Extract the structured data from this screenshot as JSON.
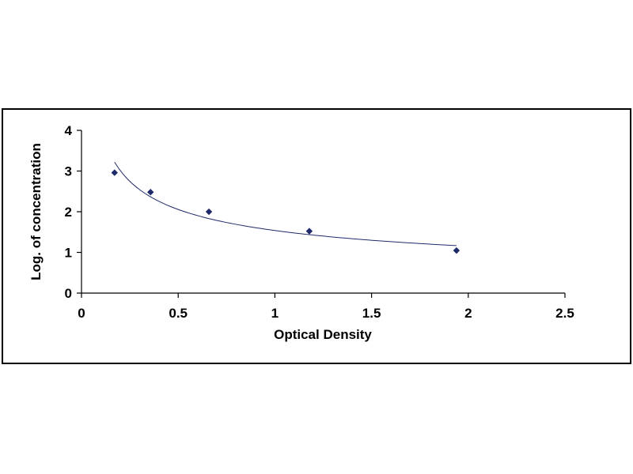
{
  "chart_data": {
    "type": "scatter",
    "title": "",
    "xlabel": "Optical Density",
    "ylabel": "Log. of concentration",
    "xlim": [
      0,
      2.5
    ],
    "ylim": [
      0,
      4
    ],
    "xticks": [
      0,
      0.5,
      1,
      1.5,
      2,
      2.5
    ],
    "xtick_labels": [
      "0",
      "0.5",
      "1",
      "1.5",
      "2",
      "2.5"
    ],
    "yticks": [
      0,
      1,
      2,
      3,
      4
    ],
    "ytick_labels": [
      "0",
      "1",
      "2",
      "3",
      "4"
    ],
    "grid": false,
    "legend": "none",
    "series": [
      {
        "x": [
          0.171,
          0.357,
          0.659,
          1.178,
          1.939
        ],
        "y": [
          2.959,
          2.481,
          1.999,
          1.522,
          1.046
        ],
        "marker": "diamond",
        "color": "#1f2a6b",
        "trendline": "smooth"
      }
    ]
  }
}
